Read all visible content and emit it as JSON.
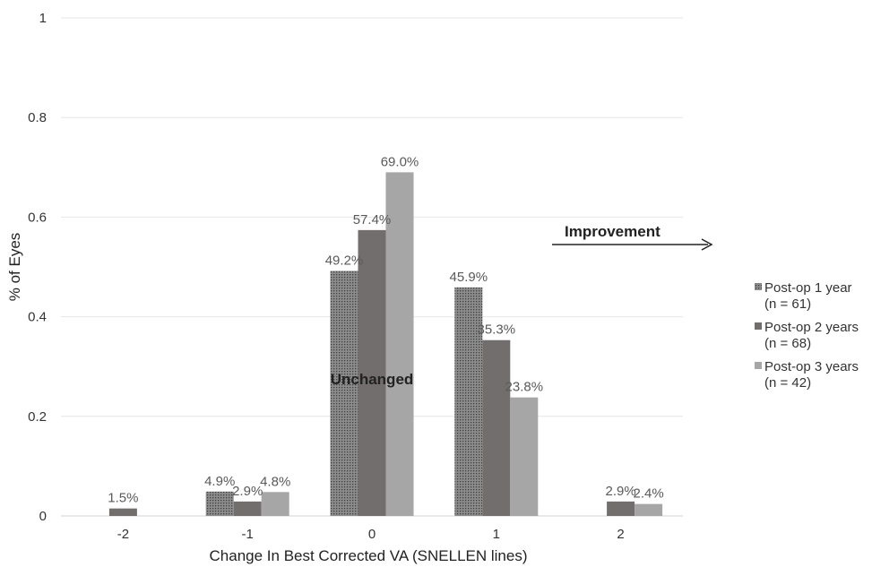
{
  "chart_data": {
    "type": "bar",
    "categories": [
      "-2",
      "-1",
      "0",
      "1",
      "2"
    ],
    "series": [
      {
        "name": "Post-op 1 year (n = 61)",
        "legend_lines": [
          "Post-op 1 year",
          "(n = 61)"
        ],
        "values": [
          null,
          0.049,
          0.492,
          0.459,
          null
        ],
        "labels": [
          "",
          "4.9%",
          "49.2%",
          "45.9%",
          ""
        ],
        "color": "#7f7f7f",
        "pattern": "dotted"
      },
      {
        "name": "Post-op 2 years (n = 68)",
        "legend_lines": [
          "Post-op 2 years",
          "(n = 68)"
        ],
        "values": [
          0.015,
          0.029,
          0.574,
          0.353,
          0.029
        ],
        "labels": [
          "1.5%",
          "2.9%",
          "57.4%",
          "35.3%",
          "2.9%"
        ],
        "color": "#726e6d",
        "pattern": "solid"
      },
      {
        "name": "Post-op 3 years (n = 42)",
        "legend_lines": [
          "Post-op 3 years",
          "(n = 42)"
        ],
        "values": [
          null,
          0.048,
          0.69,
          0.238,
          0.024
        ],
        "labels": [
          "",
          "4.8%",
          "69.0%",
          "23.8%",
          "2.4%"
        ],
        "color": "#a6a6a6",
        "pattern": "solid"
      }
    ],
    "ylim": [
      0,
      1
    ],
    "yticks": [
      0,
      0.2,
      0.4,
      0.6,
      0.8,
      1
    ],
    "ytick_labels": [
      "0",
      "0.2",
      "0.4",
      "0.6",
      "0.8",
      "1"
    ],
    "xlabel": "Change In Best Corrected VA (SNELLEN lines)",
    "ylabel": "% of Eyes",
    "grid": true,
    "legend_position": "right",
    "annotations": {
      "improvement": "Improvement",
      "unchanged": "Unchanged"
    }
  }
}
